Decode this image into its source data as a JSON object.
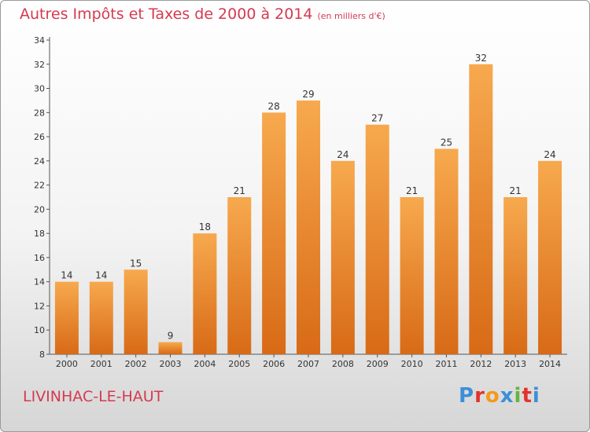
{
  "title": "Autres Impôts et Taxes de 2000 à 2014",
  "unit": "(en milliers d'€)",
  "commune": "LIVINHAC-LE-HAUT",
  "logo": [
    "P",
    "r",
    "o",
    "x",
    "i",
    "t",
    "i"
  ],
  "logo_colors": [
    "#3c8fd6",
    "#e2332b",
    "#f29a1c",
    "#3c8fd6",
    "#67b33a",
    "#e2332b",
    "#3c8fd6"
  ],
  "chart_data": {
    "type": "bar",
    "categories": [
      "2000",
      "2001",
      "2002",
      "2003",
      "2004",
      "2005",
      "2006",
      "2007",
      "2008",
      "2009",
      "2010",
      "2011",
      "2012",
      "2013",
      "2014"
    ],
    "values": [
      14,
      14,
      15,
      9,
      18,
      21,
      28,
      29,
      24,
      27,
      21,
      25,
      32,
      21,
      24
    ],
    "ylim": [
      8,
      34
    ],
    "yticks": [
      8,
      10,
      12,
      14,
      16,
      18,
      20,
      22,
      24,
      26,
      28,
      30,
      32,
      34
    ],
    "grid": false,
    "bar_color_top": "#f7a94e",
    "bar_color_bottom": "#d86a16"
  }
}
